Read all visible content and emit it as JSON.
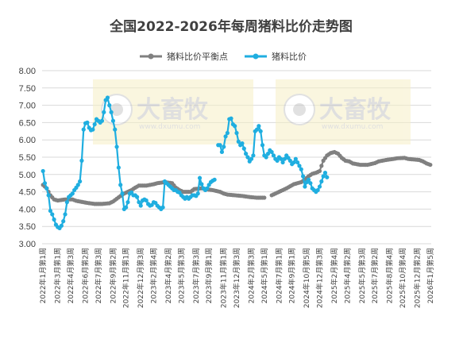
{
  "chart_data": {
    "type": "line",
    "title": "全国2022-2026年每周猪料比价走势图",
    "xlabel": "",
    "ylabel": "",
    "ylim": [
      3.0,
      8.0
    ],
    "yticks": [
      "3.00",
      "3.50",
      "4.00",
      "4.50",
      "5.00",
      "5.50",
      "6.00",
      "6.50",
      "7.00",
      "7.50",
      "8.00"
    ],
    "grid": "horizontal",
    "legend_position": "top",
    "x_count": 211,
    "x_tick_labels": [
      "2022年1月第1周",
      "2022年3月第1周",
      "2022年4月第3周",
      "2022年6月第2周",
      "2022年7月第3周",
      "2022年9月第2周",
      "2022年11月第1周",
      "2022年12月第3周",
      "2023年2月第4周",
      "2023年4月第2周",
      "2023年5月第3周",
      "2023年7月第3周",
      "2023年9月第1周",
      "2023年11月第1周",
      "2023年12月第3周",
      "2024年2月第3周",
      "2024年5月第1周",
      "2024年7月第1周",
      "2024年9月第1周",
      "2024年10月第5周",
      "2024年12月第3周",
      "2025年2月第4周",
      "2025年4月第2周",
      "2025年5月第3周",
      "2025年7月第2周",
      "2025年8月第4周",
      "2025年10月第4周",
      "2025年12月第2周",
      "2026年1月第5周"
    ],
    "watermark": {
      "brand": "大畜牧",
      "url": "www.dxumu.com"
    },
    "series": [
      {
        "name": "猪料比价平衡点",
        "color": "#808080",
        "segments": [
          {
            "start": 0,
            "knots": [
              [
                0,
                4.7
              ],
              [
                2,
                4.6
              ],
              [
                4,
                4.4
              ],
              [
                6,
                4.28
              ],
              [
                8,
                4.25
              ],
              [
                12,
                4.28
              ],
              [
                16,
                4.28
              ],
              [
                18,
                4.24
              ],
              [
                20,
                4.22
              ],
              [
                24,
                4.18
              ],
              [
                28,
                4.15
              ],
              [
                32,
                4.15
              ],
              [
                36,
                4.17
              ],
              [
                38,
                4.22
              ],
              [
                40,
                4.3
              ],
              [
                42,
                4.38
              ],
              [
                44,
                4.45
              ],
              [
                48,
                4.55
              ],
              [
                50,
                4.62
              ],
              [
                52,
                4.68
              ],
              [
                56,
                4.68
              ],
              [
                58,
                4.7
              ],
              [
                60,
                4.72
              ],
              [
                62,
                4.75
              ],
              [
                66,
                4.78
              ],
              [
                70,
                4.75
              ],
              [
                72,
                4.62
              ],
              [
                74,
                4.55
              ],
              [
                76,
                4.5
              ],
              [
                80,
                4.5
              ],
              [
                82,
                4.58
              ],
              [
                86,
                4.6
              ],
              [
                88,
                4.58
              ],
              [
                92,
                4.55
              ],
              [
                96,
                4.5
              ],
              [
                98,
                4.45
              ],
              [
                100,
                4.42
              ],
              [
                104,
                4.4
              ],
              [
                108,
                4.38
              ],
              [
                112,
                4.35
              ],
              [
                116,
                4.33
              ],
              [
                120,
                4.33
              ]
            ]
          },
          {
            "start": 124,
            "knots": [
              [
                124,
                4.4
              ],
              [
                128,
                4.5
              ],
              [
                130,
                4.55
              ],
              [
                132,
                4.6
              ],
              [
                136,
                4.72
              ],
              [
                138,
                4.75
              ],
              [
                140,
                4.78
              ],
              [
                142,
                4.85
              ],
              [
                144,
                4.95
              ],
              [
                146,
                5.02
              ],
              [
                148,
                5.05
              ],
              [
                150,
                5.1
              ],
              [
                152,
                5.4
              ],
              [
                154,
                5.55
              ],
              [
                156,
                5.62
              ],
              [
                158,
                5.65
              ],
              [
                160,
                5.6
              ],
              [
                162,
                5.48
              ],
              [
                164,
                5.4
              ],
              [
                166,
                5.38
              ],
              [
                168,
                5.32
              ],
              [
                170,
                5.3
              ],
              [
                172,
                5.28
              ],
              [
                176,
                5.28
              ],
              [
                180,
                5.33
              ],
              [
                182,
                5.38
              ],
              [
                186,
                5.42
              ],
              [
                190,
                5.45
              ],
              [
                192,
                5.47
              ],
              [
                196,
                5.48
              ],
              [
                198,
                5.45
              ],
              [
                204,
                5.42
              ],
              [
                206,
                5.38
              ],
              [
                208,
                5.32
              ],
              [
                210,
                5.28
              ]
            ]
          }
        ]
      },
      {
        "name": "猪料比价",
        "color": "#1FAEE0",
        "segments": [
          {
            "start": 0,
            "knots": [
              [
                0,
                5.1
              ],
              [
                1,
                4.75
              ],
              [
                2,
                4.6
              ],
              [
                3,
                4.4
              ],
              [
                4,
                3.95
              ],
              [
                5,
                3.85
              ],
              [
                6,
                3.7
              ],
              [
                7,
                3.55
              ],
              [
                8,
                3.48
              ],
              [
                9,
                3.45
              ],
              [
                10,
                3.52
              ],
              [
                11,
                3.65
              ],
              [
                12,
                3.85
              ],
              [
                13,
                4.2
              ],
              [
                14,
                4.35
              ],
              [
                15,
                4.4
              ],
              [
                16,
                4.45
              ],
              [
                17,
                4.55
              ],
              [
                18,
                4.62
              ],
              [
                19,
                4.7
              ],
              [
                20,
                4.8
              ],
              [
                21,
                5.4
              ],
              [
                22,
                6.3
              ],
              [
                23,
                6.48
              ],
              [
                24,
                6.5
              ],
              [
                25,
                6.35
              ],
              [
                26,
                6.28
              ],
              [
                27,
                6.3
              ],
              [
                28,
                6.45
              ],
              [
                29,
                6.6
              ],
              [
                30,
                6.55
              ],
              [
                31,
                6.5
              ],
              [
                32,
                6.55
              ],
              [
                33,
                6.8
              ],
              [
                34,
                7.15
              ],
              [
                35,
                7.22
              ],
              [
                36,
                7.0
              ],
              [
                37,
                6.8
              ],
              [
                38,
                6.55
              ],
              [
                39,
                6.3
              ],
              [
                40,
                5.8
              ],
              [
                41,
                5.2
              ],
              [
                42,
                4.7
              ],
              [
                43,
                4.45
              ],
              [
                44,
                4.0
              ],
              [
                45,
                4.05
              ],
              [
                46,
                4.2
              ],
              [
                47,
                4.45
              ],
              [
                48,
                4.48
              ],
              [
                49,
                4.4
              ],
              [
                50,
                4.4
              ],
              [
                51,
                4.35
              ],
              [
                52,
                4.2
              ],
              [
                53,
                4.1
              ],
              [
                54,
                4.25
              ],
              [
                55,
                4.28
              ],
              [
                56,
                4.25
              ],
              [
                57,
                4.15
              ],
              [
                58,
                4.1
              ],
              [
                59,
                4.12
              ],
              [
                60,
                4.2
              ],
              [
                61,
                4.18
              ],
              [
                62,
                4.1
              ],
              [
                63,
                4.05
              ],
              [
                64,
                4.0
              ],
              [
                65,
                4.05
              ],
              [
                66,
                4.8
              ],
              [
                67,
                4.75
              ],
              [
                68,
                4.7
              ],
              [
                69,
                4.65
              ],
              [
                70,
                4.6
              ],
              [
                71,
                4.55
              ],
              [
                72,
                4.55
              ],
              [
                73,
                4.5
              ],
              [
                74,
                4.48
              ],
              [
                75,
                4.4
              ],
              [
                76,
                4.35
              ],
              [
                77,
                4.3
              ],
              [
                78,
                4.35
              ],
              [
                79,
                4.3
              ],
              [
                80,
                4.35
              ],
              [
                81,
                4.4
              ],
              [
                82,
                4.4
              ],
              [
                83,
                4.38
              ],
              [
                84,
                4.45
              ],
              [
                85,
                4.9
              ],
              [
                86,
                4.72
              ],
              [
                87,
                4.6
              ],
              [
                88,
                4.55
              ],
              [
                89,
                4.6
              ],
              [
                90,
                4.7
              ],
              [
                91,
                4.78
              ],
              [
                92,
                4.82
              ],
              [
                93,
                4.85
              ]
            ]
          },
          {
            "start": 95,
            "knots": [
              [
                95,
                5.85
              ],
              [
                96,
                5.85
              ],
              [
                97,
                5.65
              ],
              [
                98,
                5.8
              ],
              [
                99,
                6.1
              ],
              [
                100,
                6.2
              ],
              [
                101,
                6.6
              ],
              [
                102,
                6.62
              ],
              [
                103,
                6.45
              ],
              [
                104,
                6.4
              ],
              [
                105,
                6.2
              ],
              [
                106,
                5.95
              ],
              [
                107,
                5.85
              ],
              [
                108,
                5.9
              ],
              [
                109,
                5.75
              ],
              [
                110,
                5.6
              ],
              [
                111,
                5.5
              ],
              [
                112,
                5.38
              ],
              [
                113,
                5.45
              ],
              [
                114,
                5.55
              ],
              [
                115,
                6.25
              ],
              [
                116,
                6.3
              ],
              [
                117,
                6.4
              ],
              [
                118,
                6.25
              ],
              [
                119,
                5.85
              ],
              [
                120,
                5.55
              ],
              [
                121,
                5.5
              ],
              [
                122,
                5.6
              ],
              [
                123,
                5.7
              ],
              [
                124,
                5.65
              ],
              [
                125,
                5.55
              ],
              [
                126,
                5.45
              ],
              [
                127,
                5.4
              ],
              [
                128,
                5.5
              ],
              [
                129,
                5.45
              ],
              [
                130,
                5.35
              ],
              [
                131,
                5.45
              ],
              [
                132,
                5.55
              ],
              [
                133,
                5.48
              ],
              [
                134,
                5.4
              ],
              [
                135,
                5.3
              ],
              [
                136,
                5.35
              ],
              [
                137,
                5.45
              ],
              [
                138,
                5.35
              ],
              [
                139,
                5.25
              ],
              [
                140,
                5.15
              ],
              [
                141,
                4.95
              ],
              [
                142,
                4.65
              ],
              [
                143,
                4.78
              ],
              [
                144,
                4.85
              ],
              [
                145,
                4.75
              ],
              [
                146,
                4.6
              ],
              [
                147,
                4.55
              ],
              [
                148,
                4.5
              ],
              [
                149,
                4.55
              ],
              [
                150,
                4.65
              ],
              [
                151,
                4.8
              ],
              [
                152,
                4.95
              ],
              [
                153,
                5.05
              ],
              [
                154,
                4.92
              ]
            ]
          }
        ]
      }
    ]
  }
}
